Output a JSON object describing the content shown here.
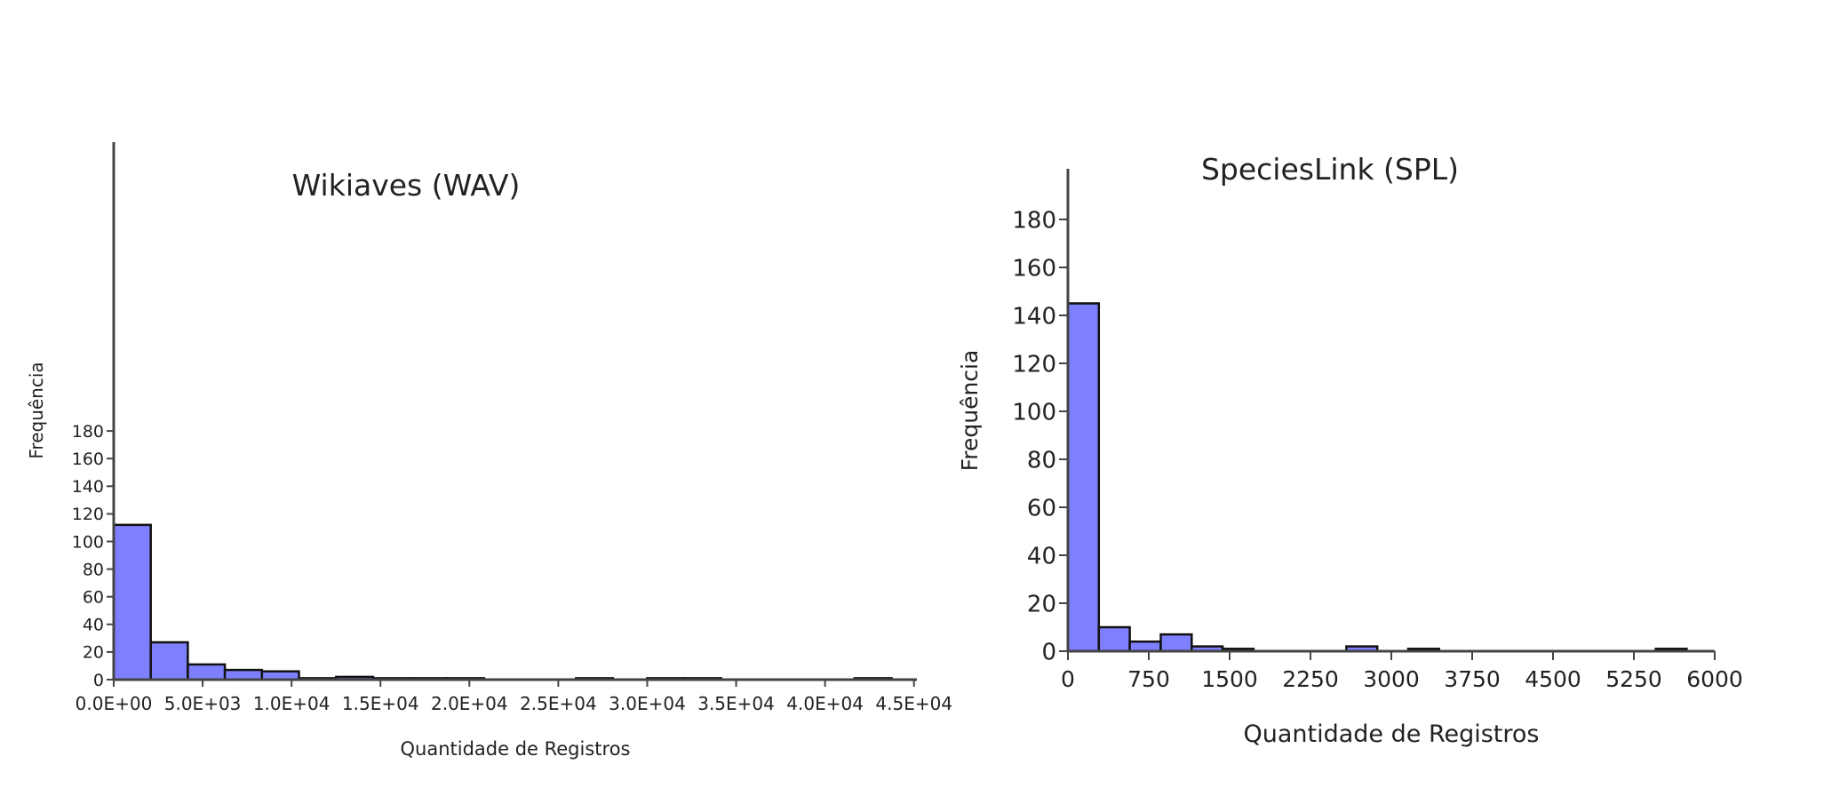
{
  "colors": {
    "bar_fill": "#7f80ff",
    "bar_stroke": "#111111",
    "axis": "#444444"
  },
  "chart_data": [
    {
      "type": "bar",
      "title": "Wikiaves (WAV)",
      "xlabel": "Quantidade de Registros",
      "ylabel": "Frequência",
      "xlim": [
        0,
        50000
      ],
      "ylim": [
        0,
        200
      ],
      "bin_width": 2083,
      "bins_start": [
        0,
        2083,
        4166,
        6249,
        8332,
        10415,
        12498,
        14581,
        16664,
        18747,
        25996,
        29995,
        32078,
        41660
      ],
      "values": [
        112,
        27,
        11,
        7,
        6,
        1,
        2,
        1,
        1,
        1,
        1,
        1,
        1,
        1
      ],
      "x_ticks": [
        0,
        5000,
        10000,
        15000,
        20000,
        25000,
        30000,
        35000,
        40000,
        45000
      ],
      "x_tick_labels": [
        "0.0E+00",
        "5.0E+03",
        "1.0E+04",
        "1.5E+04",
        "2.0E+04",
        "2.5E+04",
        "3.0E+04",
        "3.5E+04",
        "4.0E+04",
        "4.5E+04"
      ],
      "y_ticks": [
        0,
        20,
        40,
        60,
        80,
        100,
        120,
        140,
        160,
        180
      ],
      "y_tick_labels": [
        "0",
        "20",
        "40",
        "60",
        "80",
        "100",
        "120",
        "140",
        "160",
        "180"
      ],
      "grid": false
    },
    {
      "type": "bar",
      "title": "SpeciesLink (SPL)",
      "xlabel": "Quantidade de Registros",
      "ylabel": "Frequência",
      "xlim": [
        0,
        6000
      ],
      "ylim": [
        0,
        190
      ],
      "bin_width": 287,
      "bins_start": [
        0,
        287,
        574,
        861,
        1148,
        1435,
        2583,
        3157,
        5453
      ],
      "values": [
        145,
        10,
        4,
        7,
        2,
        1,
        2,
        1,
        1
      ],
      "x_ticks": [
        0,
        750,
        1500,
        2250,
        3000,
        3750,
        4500,
        5250,
        6000
      ],
      "x_tick_labels": [
        "0",
        "750",
        "1500",
        "2250",
        "3000",
        "3750",
        "4500",
        "5250",
        "6000"
      ],
      "y_ticks": [
        0,
        20,
        40,
        60,
        80,
        100,
        120,
        140,
        160,
        180
      ],
      "y_tick_labels": [
        "0",
        "20",
        "40",
        "60",
        "80",
        "100",
        "120",
        "140",
        "160",
        "180"
      ],
      "grid": false
    }
  ]
}
